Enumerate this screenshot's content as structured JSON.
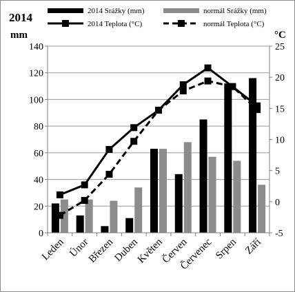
{
  "chart_data": {
    "type": "bar+line",
    "title": "2014",
    "y_left_label": "mm",
    "y_right_label": "°C",
    "ylim_left": [
      0,
      140
    ],
    "ylim_right": [
      -5,
      25
    ],
    "y_left_ticks": [
      0,
      20,
      40,
      60,
      80,
      100,
      120,
      140
    ],
    "y_right_ticks": [
      -5,
      0,
      5,
      10,
      15,
      20,
      25
    ],
    "grid": "horizontal",
    "legend_position": "top",
    "categories": [
      "Leden",
      "Únor",
      "Březen",
      "Duben",
      "Květen",
      "Červen",
      "Červenec",
      "Srpen",
      "Září"
    ],
    "bar_series": [
      {
        "name": "2014 Srážky (mm)",
        "color": "#000000",
        "values": [
          22,
          13,
          5,
          11,
          63,
          44,
          85,
          112,
          116
        ]
      },
      {
        "name": "normál Srážky (mm)",
        "color": "#8c8c8c",
        "values": [
          25,
          25,
          24,
          34,
          63,
          68,
          57,
          54,
          36
        ]
      }
    ],
    "line_series": [
      {
        "name": "2014 Teplota (°C)",
        "color": "#000000",
        "style": "solid",
        "marker": "square",
        "values": [
          1.1,
          2.7,
          8.4,
          11.9,
          14.7,
          18.8,
          21.5,
          18.5,
          15.4
        ]
      },
      {
        "name": "normál Teplota (°C)",
        "color": "#000000",
        "style": "dashed",
        "marker": "square",
        "values": [
          -2.2,
          0.2,
          4.4,
          9.7,
          14.7,
          17.8,
          19.4,
          18.5,
          14.8
        ]
      }
    ]
  }
}
